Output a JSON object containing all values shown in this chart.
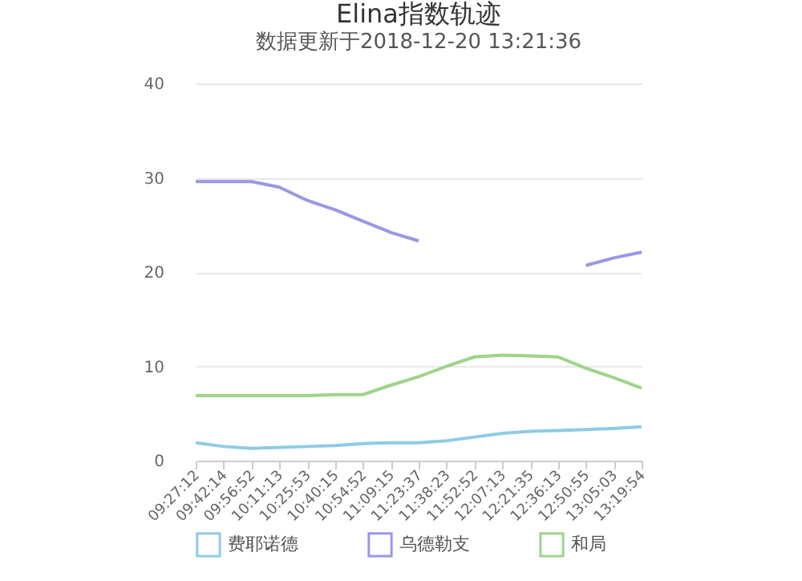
{
  "chart_data": {
    "type": "line",
    "title": "Elina指数轨迹",
    "subtitle": "数据更新于2018-12-20 13:21:36",
    "categories": [
      "09:27:12",
      "09:42:14",
      "09:56:52",
      "10:11:13",
      "10:25:53",
      "10:40:15",
      "10:54:52",
      "11:09:15",
      "11:23:37",
      "11:38:23",
      "11:52:52",
      "12:07:13",
      "12:21:35",
      "12:36:13",
      "12:50:55",
      "13:05:03",
      "13:19:54"
    ],
    "series": [
      {
        "name": "费耶诺德",
        "color": "#8ecbe6",
        "values": [
          1.9,
          1.5,
          1.3,
          1.4,
          1.5,
          1.6,
          1.8,
          1.9,
          1.9,
          2.1,
          2.5,
          2.9,
          3.1,
          3.2,
          3.3,
          3.4,
          3.6
        ]
      },
      {
        "name": "乌德勒支",
        "color": "#9a97e6",
        "values": [
          29.6,
          29.6,
          29.6,
          29.0,
          27.6,
          26.6,
          25.4,
          24.2,
          23.3,
          null,
          null,
          null,
          null,
          null,
          20.7,
          21.5,
          22.1
        ]
      },
      {
        "name": "和局",
        "color": "#9ed48a",
        "values": [
          6.9,
          6.9,
          6.9,
          6.9,
          6.9,
          7.0,
          7.0,
          8.0,
          8.9,
          10.0,
          11.0,
          11.2,
          11.1,
          11.0,
          9.8,
          8.8,
          7.7
        ]
      }
    ],
    "ylim": [
      0,
      40
    ],
    "yticks": [
      0,
      10,
      20,
      30,
      40
    ],
    "grid": "y",
    "legend": "bottom",
    "marker": "none",
    "line_style": "solid"
  }
}
